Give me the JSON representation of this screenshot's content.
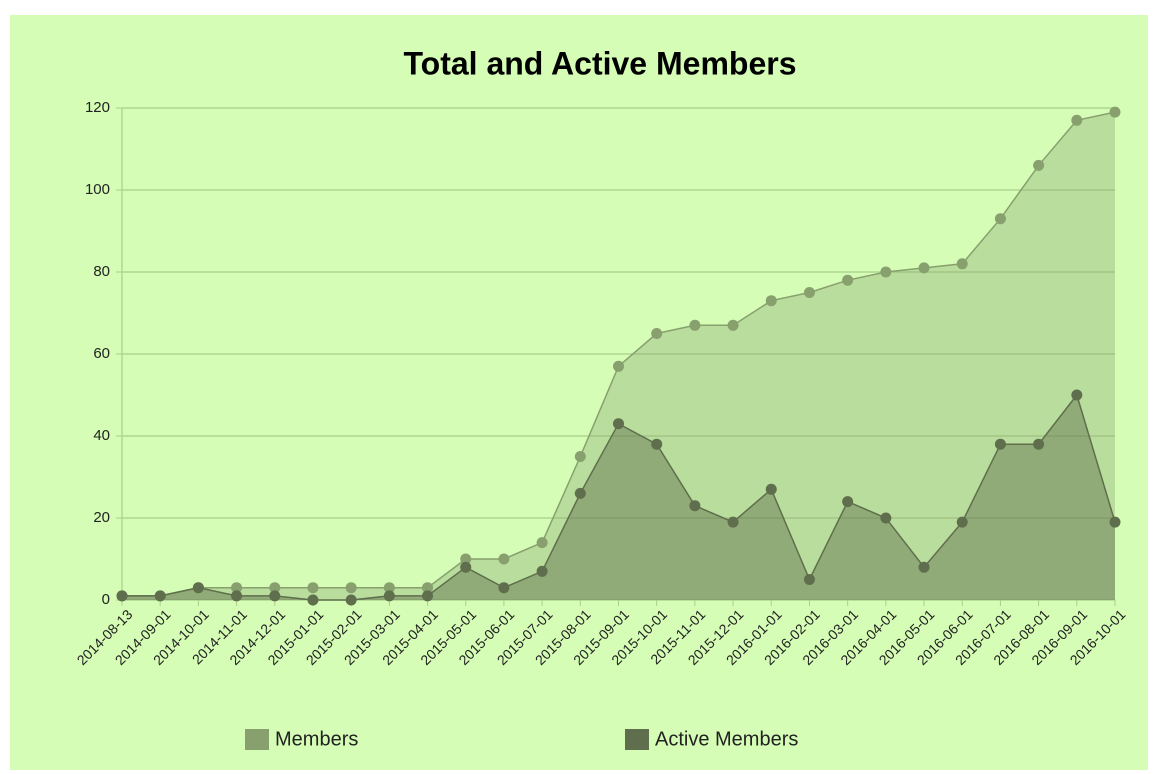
{
  "chart_data": {
    "type": "area",
    "title": "Total and Active Members",
    "categories": [
      "2014-08-13",
      "2014-09-01",
      "2014-10-01",
      "2014-11-01",
      "2014-12-01",
      "2015-01-01",
      "2015-02-01",
      "2015-03-01",
      "2015-04-01",
      "2015-05-01",
      "2015-06-01",
      "2015-07-01",
      "2015-08-01",
      "2015-09-01",
      "2015-10-01",
      "2015-11-01",
      "2015-12-01",
      "2016-01-01",
      "2016-02-01",
      "2016-03-01",
      "2016-04-01",
      "2016-05-01",
      "2016-06-01",
      "2016-07-01",
      "2016-08-01",
      "2016-09-01",
      "2016-10-01"
    ],
    "series": [
      {
        "name": "Members",
        "color": "#87a06e",
        "values": [
          1,
          1,
          3,
          3,
          3,
          3,
          3,
          3,
          3,
          10,
          10,
          14,
          35,
          57,
          65,
          67,
          67,
          73,
          75,
          78,
          80,
          81,
          82,
          93,
          106,
          117,
          119
        ]
      },
      {
        "name": "Active Members",
        "color": "#5f6e4c",
        "values": [
          1,
          1,
          3,
          1,
          1,
          0,
          0,
          1,
          1,
          8,
          3,
          7,
          26,
          43,
          38,
          23,
          19,
          27,
          5,
          24,
          20,
          8,
          19,
          38,
          38,
          50,
          19
        ]
      }
    ],
    "ylim": [
      0,
      120
    ],
    "yticks": [
      0,
      20,
      40,
      60,
      80,
      100,
      120
    ],
    "grid": true
  }
}
